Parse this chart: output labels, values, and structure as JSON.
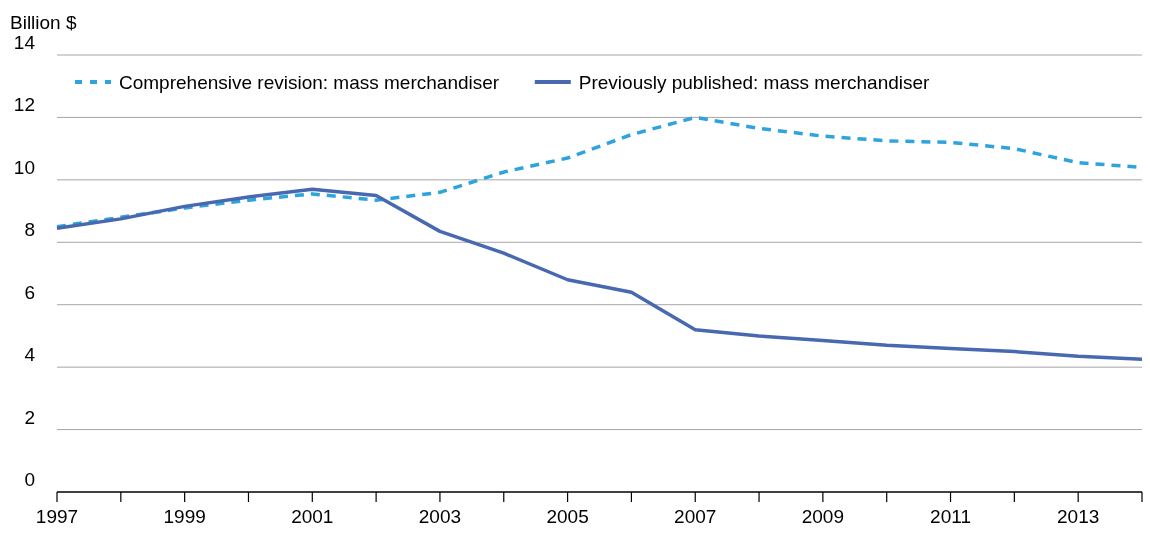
{
  "chart_data": {
    "type": "line",
    "ylabel": "Billion $",
    "x": [
      1997,
      1998,
      1999,
      2000,
      2001,
      2002,
      2003,
      2004,
      2005,
      2006,
      2007,
      2008,
      2009,
      2010,
      2011,
      2012,
      2013,
      2014
    ],
    "series": [
      {
        "name": "Comprehensive revision: mass merchandiser",
        "color": "#2ea3dd",
        "line_style": "dashed",
        "values": [
          8.5,
          8.8,
          9.1,
          9.35,
          9.55,
          9.35,
          9.6,
          10.25,
          10.7,
          11.45,
          12.0,
          11.65,
          11.4,
          11.25,
          11.2,
          11.0,
          10.55,
          10.4
        ]
      },
      {
        "name": "Previously published: mass merchandiser",
        "color": "#4868b0",
        "line_style": "solid",
        "values": [
          8.45,
          8.75,
          9.15,
          9.45,
          9.7,
          9.5,
          8.35,
          7.65,
          6.8,
          6.4,
          5.2,
          5.0,
          4.85,
          4.7,
          4.6,
          4.5,
          4.35,
          4.25
        ]
      }
    ],
    "xlim": [
      1997,
      2014
    ],
    "xticks": [
      1997,
      {
        "value": 1998,
        "label": null
      },
      1999,
      {
        "value": 2000,
        "label": null
      },
      2001,
      {
        "value": 2002,
        "label": null
      },
      2003,
      {
        "value": 2004,
        "label": null
      },
      2005,
      {
        "value": 2006,
        "label": null
      },
      2007,
      {
        "value": 2008,
        "label": null
      },
      2009,
      {
        "value": 2010,
        "label": null
      },
      2011,
      {
        "value": 2012,
        "label": null
      },
      2013,
      {
        "value": 2014,
        "label": null
      }
    ],
    "ylim": [
      0,
      14
    ],
    "yticks": [
      0,
      2,
      4,
      6,
      8,
      10,
      12,
      14
    ],
    "grid": "y",
    "legend": "top"
  }
}
